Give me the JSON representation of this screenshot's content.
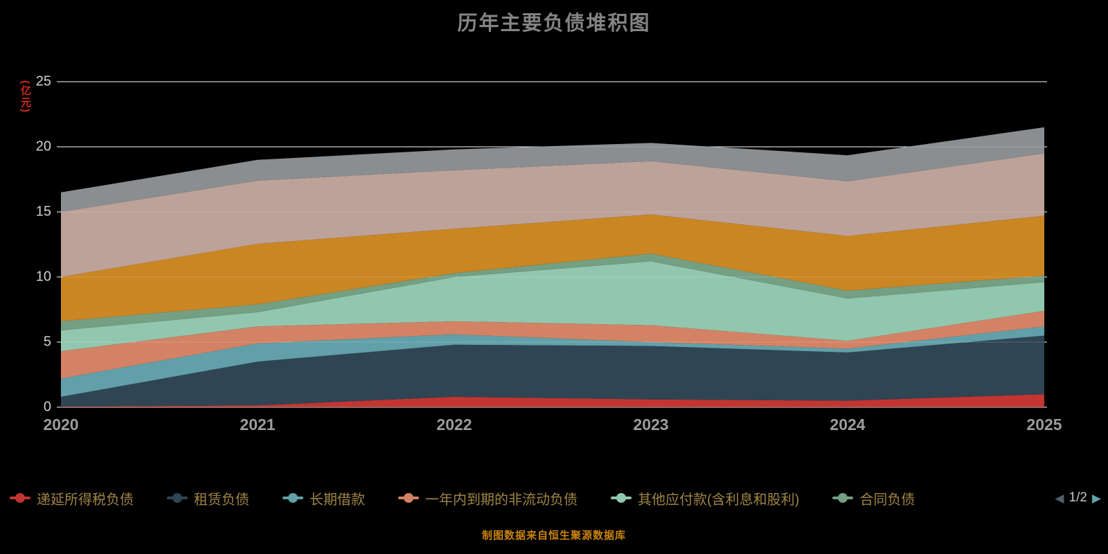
{
  "title": "历年主要负债堆积图",
  "y_axis": {
    "name": "(亿元)",
    "name_color": "#d42a1e",
    "ticks": [
      0,
      5,
      10,
      15,
      20,
      25
    ],
    "max": 25
  },
  "x_axis": {
    "categories": [
      "2020",
      "2021",
      "2022",
      "2023",
      "2024",
      "2025"
    ]
  },
  "chart_data": {
    "type": "area",
    "stacked": true,
    "title": "历年主要负债堆积图",
    "ylabel": "(亿元)",
    "ylim": [
      0,
      25
    ],
    "grid": true,
    "legend_position": "bottom",
    "x": [
      "2020",
      "2021",
      "2022",
      "2023",
      "2024",
      "2025"
    ],
    "series": [
      {
        "id": "deferred-income-tax-liabilities",
        "name": "递延所得税负债",
        "color": "#c23531",
        "values": [
          0.05,
          0.15,
          0.8,
          0.6,
          0.5,
          1.0
        ]
      },
      {
        "id": "lease-liabilities",
        "name": "租赁负债",
        "color": "#2f4554",
        "values": [
          0.75,
          3.35,
          4.0,
          4.1,
          3.7,
          4.5
        ]
      },
      {
        "id": "long-term-borrowings",
        "name": "长期借款",
        "color": "#61a0a8",
        "values": [
          1.4,
          1.4,
          0.8,
          0.3,
          0.3,
          0.7
        ]
      },
      {
        "id": "non-current-liabilities-due-within-one-year",
        "name": "一年内到期的非流动负债",
        "color": "#d48265",
        "values": [
          2.1,
          1.3,
          1.0,
          1.3,
          0.6,
          1.2
        ]
      },
      {
        "id": "other-payables",
        "name": "其他应付款(含利息和股利)",
        "color": "#91c7ae",
        "values": [
          1.6,
          1.1,
          3.4,
          4.9,
          3.25,
          2.2
        ]
      },
      {
        "id": "contract-liabilities",
        "name": "合同负债",
        "color": "#749f83",
        "values": [
          0.7,
          0.6,
          0.3,
          0.6,
          0.6,
          0.5
        ]
      },
      {
        "id": "series-7-unlabeled",
        "name": "",
        "color": "#ca8622",
        "values": [
          3.4,
          4.65,
          3.4,
          3.0,
          4.2,
          4.6
        ]
      },
      {
        "id": "series-8-unlabeled",
        "name": "",
        "color": "#bda29a",
        "values": [
          5.0,
          4.85,
          4.5,
          4.1,
          4.2,
          4.8
        ]
      },
      {
        "id": "series-9-unlabeled",
        "name": "",
        "color": "#8a8e91",
        "values": [
          1.5,
          1.6,
          1.6,
          1.4,
          2.0,
          2.0
        ]
      }
    ]
  },
  "legend": {
    "page": "1/2",
    "prev_icon": "◀",
    "next_icon": "▶",
    "items": [
      {
        "id": "deferred-income-tax-liabilities",
        "label": "递延所得税负债",
        "color": "#c23531"
      },
      {
        "id": "lease-liabilities",
        "label": "租赁负债",
        "color": "#2f4554"
      },
      {
        "id": "long-term-borrowings",
        "label": "长期借款",
        "color": "#61a0a8"
      },
      {
        "id": "non-current-liabilities-due-within-one-year",
        "label": "一年内到期的非流动负债",
        "color": "#d48265"
      },
      {
        "id": "other-payables",
        "label": "其他应付款(含利息和股利)",
        "color": "#91c7ae"
      },
      {
        "id": "contract-liabilities",
        "label": "合同负债",
        "color": "#749f83"
      }
    ]
  },
  "footer": {
    "text": "制图数据来自恒生聚源数据库",
    "color": "#c8830b"
  }
}
